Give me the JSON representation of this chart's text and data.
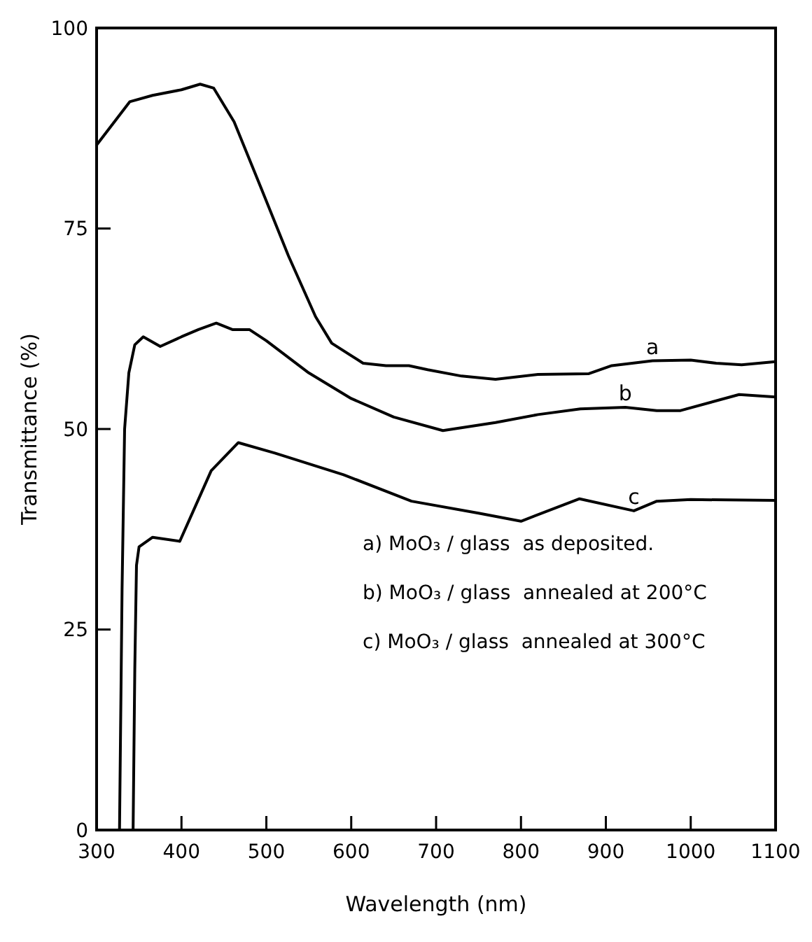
{
  "chart_data": {
    "type": "line",
    "xlabel": "Wavelength (nm)",
    "ylabel": "Transmittance (%)",
    "xlim": [
      300,
      1100
    ],
    "ylim": [
      0,
      100
    ],
    "xticks": [
      300,
      400,
      500,
      600,
      700,
      800,
      900,
      1000,
      1100
    ],
    "yticks": [
      0,
      25,
      50,
      75,
      100
    ],
    "grid": false,
    "marker": "none",
    "line_style": "solid",
    "series": [
      {
        "name": "a",
        "color": "#000000",
        "x": [
          300,
          339,
          366,
          400,
          422,
          438,
          462,
          494,
          526,
          558,
          577,
          614,
          641,
          668,
          690,
          730,
          770,
          820,
          880,
          907,
          955,
          1000,
          1030,
          1060,
          1100
        ],
        "values": [
          85.4,
          90.8,
          91.6,
          92.3,
          93,
          92.5,
          88.3,
          80,
          71.6,
          64,
          60.7,
          58.2,
          57.9,
          57.9,
          57.4,
          56.6,
          56.2,
          56.8,
          56.9,
          57.9,
          58.5,
          58.6,
          58.2,
          58,
          58.4
        ]
      },
      {
        "name": "b",
        "color": "#000000",
        "x": [
          327,
          330,
          333,
          338,
          345,
          355,
          375,
          400,
          420,
          441,
          460,
          480,
          500,
          550,
          600,
          650,
          708,
          770,
          820,
          870,
          923,
          960,
          988,
          1057,
          1100
        ],
        "values": [
          0,
          30,
          50,
          57,
          60.5,
          61.5,
          60.3,
          61.5,
          62.4,
          63.2,
          62.4,
          62.4,
          61,
          57,
          53.8,
          51.5,
          49.8,
          50.8,
          51.8,
          52.5,
          52.7,
          52.3,
          52.3,
          54.3,
          54
        ]
      },
      {
        "name": "c",
        "color": "#000000",
        "x": [
          343,
          345,
          347,
          350,
          366,
          398,
          414,
          435,
          467,
          510,
          591,
          671,
          750,
          800,
          869,
          933,
          960,
          1000,
          1100
        ],
        "values": [
          0,
          20,
          33,
          35.3,
          36.5,
          36,
          39.8,
          44.8,
          48.3,
          47,
          44.3,
          41,
          39.5,
          38.5,
          41.3,
          39.8,
          41,
          41.2,
          41.1
        ]
      }
    ],
    "annotations": [
      "a) MoO₃ / glass  as deposited.",
      "b) MoO₃ / glass  annealed at 200°C",
      "c) MoO₃ / glass  annealed at 300°C"
    ]
  }
}
